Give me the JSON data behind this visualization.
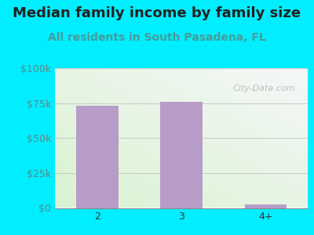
{
  "title": "Median family income by family size",
  "subtitle": "All residents in South Pasadena, FL",
  "categories": [
    "2",
    "3",
    "4+"
  ],
  "values": [
    73000,
    76000,
    2500
  ],
  "bar_color": "#b89cc8",
  "background_outer": "#00eeff",
  "title_color": "#222222",
  "subtitle_color": "#4a9a9a",
  "ytick_labels": [
    "$0",
    "$25k",
    "$50k",
    "$75k",
    "$100k"
  ],
  "ytick_values": [
    0,
    25000,
    50000,
    75000,
    100000
  ],
  "ylim": [
    0,
    100000
  ],
  "watermark": "City-Data.com",
  "title_fontsize": 13,
  "subtitle_fontsize": 10,
  "axis_label_fontsize": 9,
  "ytick_color": "#5a8a8a",
  "xtick_color": "#333333",
  "plot_bg_left": "#d8efd0",
  "plot_bg_right": "#f0f0f0"
}
